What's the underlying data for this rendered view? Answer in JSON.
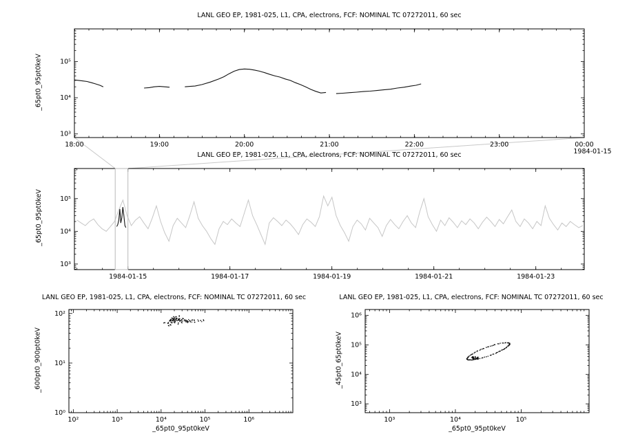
{
  "page": {
    "background": "#ffffff",
    "series_black": "#111111",
    "series_gray": "#c6c6c6"
  },
  "chart_data": {
    "connector_color": "#c8c8c8",
    "panels": [
      {
        "id": "top-timeseries",
        "type": "line",
        "title": "LANL GEO EP, 1981-025, L1, CPA, electrons, FCF: NOMINAL TC 07272011, 60 sec",
        "ylabel": "_65pt0_95pt0keV",
        "date_label": "1984-01-15",
        "x": {
          "log": false,
          "min": 18,
          "max": 24,
          "minor": 0.1667
        },
        "y": {
          "log": true,
          "min": 2.9,
          "max": 5.9
        },
        "x_ticks": [
          {
            "v": 18,
            "label": "18:00"
          },
          {
            "v": 19,
            "label": "19:00"
          },
          {
            "v": 20,
            "label": "20:00"
          },
          {
            "v": 21,
            "label": "21:00"
          },
          {
            "v": 22,
            "label": "22:00"
          },
          {
            "v": 23,
            "label": "23:00"
          },
          {
            "v": 24,
            "label": "00:00"
          }
        ],
        "y_ticks": [
          {
            "v": 1000.0,
            "label": "10³"
          },
          {
            "v": 10000.0,
            "label": "10⁴"
          },
          {
            "v": 100000.0,
            "label": "10⁵"
          }
        ],
        "series": [
          {
            "color": "#111111",
            "width": 1.1,
            "segments": [
              [
                [
                  18.0,
                  31000.0
                ],
                [
                  18.05,
                  30000.0
                ],
                [
                  18.1,
                  29000.0
                ],
                [
                  18.15,
                  28000.0
                ],
                [
                  18.2,
                  26000.0
                ],
                [
                  18.25,
                  24000.0
                ],
                [
                  18.3,
                  22000.0
                ],
                [
                  18.34,
                  20000.0
                ]
              ],
              [
                [
                  18.82,
                  18500.0
                ],
                [
                  18.88,
                  19000.0
                ],
                [
                  18.94,
                  20000.0
                ],
                [
                  19.0,
                  20500.0
                ],
                [
                  19.06,
                  20000.0
                ],
                [
                  19.12,
                  19500.0
                ]
              ],
              [
                [
                  19.3,
                  20000.0
                ],
                [
                  19.36,
                  20500.0
                ],
                [
                  19.42,
                  21000.0
                ],
                [
                  19.5,
                  23000.0
                ],
                [
                  19.6,
                  27000.0
                ],
                [
                  19.7,
                  33000.0
                ],
                [
                  19.76,
                  38000.0
                ],
                [
                  19.82,
                  46000.0
                ],
                [
                  19.88,
                  54000.0
                ],
                [
                  19.94,
                  60000.0
                ],
                [
                  20.0,
                  62000.0
                ],
                [
                  20.06,
                  61000.0
                ],
                [
                  20.12,
                  58000.0
                ],
                [
                  20.18,
                  54000.0
                ],
                [
                  20.24,
                  49000.0
                ],
                [
                  20.3,
                  44000.0
                ],
                [
                  20.36,
                  40000.0
                ],
                [
                  20.42,
                  37000.0
                ],
                [
                  20.48,
                  33000.0
                ],
                [
                  20.54,
                  30000.0
                ],
                [
                  20.6,
                  26000.0
                ],
                [
                  20.66,
                  23000.0
                ],
                [
                  20.72,
                  20000.0
                ],
                [
                  20.78,
                  17000.0
                ],
                [
                  20.84,
                  15000.0
                ],
                [
                  20.9,
                  13500.0
                ],
                [
                  20.96,
                  14000.0
                ]
              ],
              [
                [
                  21.08,
                  13000.0
                ],
                [
                  21.16,
                  13300.0
                ],
                [
                  21.24,
                  13800.0
                ],
                [
                  21.32,
                  14200.0
                ],
                [
                  21.4,
                  14800.0
                ],
                [
                  21.48,
                  15200.0
                ],
                [
                  21.56,
                  15800.0
                ],
                [
                  21.64,
                  16500.0
                ],
                [
                  21.72,
                  17200.0
                ],
                [
                  21.8,
                  18500.0
                ],
                [
                  21.88,
                  19500.0
                ],
                [
                  21.96,
                  21000.0
                ],
                [
                  22.02,
                  22000.0
                ],
                [
                  22.08,
                  24000.0
                ]
              ]
            ]
          }
        ]
      },
      {
        "id": "overview-timeseries",
        "type": "line",
        "title": "LANL GEO EP, 1981-025, L1, CPA, electrons, FCF: NOMINAL TC 07272011, 60 sec",
        "ylabel": "_65pt0_95pt0keV",
        "x": {
          "log": false,
          "min": 13.95,
          "max": 23.95,
          "minor": 0.5
        },
        "y": {
          "log": true,
          "min": 2.83,
          "max": 5.92
        },
        "x_ticks": [
          {
            "v": 15,
            "label": "1984-01-15"
          },
          {
            "v": 17,
            "label": "1984-01-17"
          },
          {
            "v": 19,
            "label": "1984-01-19"
          },
          {
            "v": 21,
            "label": "1984-01-21"
          },
          {
            "v": 23,
            "label": "1984-01-23"
          }
        ],
        "y_ticks": [
          {
            "v": 1000.0,
            "label": "10³"
          },
          {
            "v": 10000.0,
            "label": "10⁴"
          },
          {
            "v": 100000.0,
            "label": "10⁵"
          }
        ],
        "zoom_rect": {
          "x0": 14.75,
          "x1": 15.0,
          "color": "#b8b8b8"
        },
        "series": [
          {
            "color": "#c6c6c6",
            "width": 1,
            "x_start": 14.0,
            "x_step": 0.082,
            "values": [
              22000.0,
              18000.0,
              15000.0,
              20000.0,
              24000.0,
              16000.0,
              12000.0,
              10000.0,
              14000.0,
              20000.0,
              45000.0,
              90000.0,
              30000.0,
              15000.0,
              22000.0,
              28000.0,
              18000.0,
              12000.0,
              25000.0,
              60000.0,
              20000.0,
              9000.0,
              5000.0,
              15000.0,
              25000.0,
              18000.0,
              13000.0,
              30000.0,
              80000.0,
              25000.0,
              15000.0,
              10000.0,
              6000.0,
              4000.0,
              12000.0,
              20000.0,
              16000.0,
              24000.0,
              18000.0,
              14000.0,
              35000.0,
              90000.0,
              30000.0,
              16000.0,
              8000.0,
              4000.0,
              18000.0,
              26000.0,
              20000.0,
              15000.0,
              22000.0,
              17000.0,
              12000.0,
              8000.0,
              16000.0,
              24000.0,
              19000.0,
              14000.0,
              28000.0,
              120000.0,
              60000.0,
              110000.0,
              30000.0,
              15000.0,
              9000.0,
              5000.0,
              14000.0,
              22000.0,
              17000.0,
              11000.0,
              25000.0,
              18000.0,
              13000.0,
              7000.0,
              15000.0,
              23000.0,
              16000.0,
              12000.0,
              20000.0,
              30000.0,
              18000.0,
              13000.0,
              40000.0,
              100000.0,
              28000.0,
              16000.0,
              10000.0,
              22000.0,
              15000.0,
              26000.0,
              19000.0,
              13000.0,
              21000.0,
              16000.0,
              24000.0,
              18000.0,
              12000.0,
              19000.0,
              27000.0,
              20000.0,
              14000.0,
              23000.0,
              17000.0,
              28000.0,
              45000.0,
              20000.0,
              14000.0,
              24000.0,
              18000.0,
              12000.0,
              20000.0,
              15000.0,
              60000.0,
              25000.0,
              16000.0,
              11000.0,
              18000.0,
              14000.0,
              20000.0,
              16000.0,
              13000.0,
              15000.0
            ]
          },
          {
            "color": "#111111",
            "width": 1.1,
            "x_start": 14.78,
            "x_step": 0.02,
            "values": [
              14000.0,
              16000.0,
              22000.0,
              48000.0,
              18000.0,
              26000.0,
              55000.0,
              30000.0,
              15000.0,
              13000.0
            ]
          }
        ]
      },
      {
        "id": "scatter-left",
        "type": "scatter",
        "title": "LANL GEO EP, 1981-025, L1, CPA, electrons, FCF: NOMINAL TC 07272011, 60 sec",
        "xlabel": "_65pt0_95pt0keV",
        "ylabel": "_600pt0_900pt0keV",
        "x": {
          "log": true,
          "min": 1.9,
          "max": 7.0
        },
        "y": {
          "log": true,
          "min": 0,
          "max": 2.08
        },
        "x_ticks": [
          {
            "v": 100.0,
            "label": "10²"
          },
          {
            "v": 1000.0,
            "label": "10³"
          },
          {
            "v": 10000.0,
            "label": "10⁴"
          },
          {
            "v": 100000.0,
            "label": "10⁵"
          },
          {
            "v": 1000000.0,
            "label": "10⁶"
          }
        ],
        "y_ticks": [
          {
            "v": 1,
            "label": "10⁰"
          },
          {
            "v": 10,
            "label": "10¹"
          },
          {
            "v": 100,
            "label": "10²"
          }
        ],
        "points": [
          [
            14000,
            62
          ],
          [
            15000,
            67
          ],
          [
            15500,
            71
          ],
          [
            16000,
            74
          ],
          [
            16500,
            69
          ],
          [
            17000,
            76
          ],
          [
            17500,
            72
          ],
          [
            18000,
            78
          ],
          [
            18500,
            74
          ],
          [
            19000,
            80
          ],
          [
            19500,
            76
          ],
          [
            20000,
            72
          ],
          [
            20500,
            79
          ],
          [
            21000,
            75
          ],
          [
            21500,
            70
          ],
          [
            22000,
            77
          ],
          [
            22500,
            73
          ],
          [
            23000,
            80
          ],
          [
            24000,
            76
          ],
          [
            25000,
            72
          ],
          [
            26000,
            78
          ],
          [
            27000,
            74
          ],
          [
            28000,
            70
          ],
          [
            29000,
            76
          ],
          [
            30000,
            72
          ],
          [
            32000,
            78
          ],
          [
            34000,
            74
          ],
          [
            36000,
            70
          ],
          [
            38000,
            75
          ],
          [
            40000,
            72
          ],
          [
            42000,
            68
          ],
          [
            45000,
            73
          ],
          [
            48000,
            70
          ],
          [
            52000,
            74
          ],
          [
            56000,
            71
          ],
          [
            60000,
            68
          ],
          [
            16000,
            60
          ],
          [
            18000,
            64
          ],
          [
            20000,
            66
          ],
          [
            24000,
            63
          ],
          [
            30000,
            65
          ],
          [
            40000,
            66
          ],
          [
            15000,
            58
          ],
          [
            22000,
            85
          ],
          [
            26000,
            88
          ],
          [
            19000,
            84
          ],
          [
            70000,
            72
          ],
          [
            80000,
            70
          ],
          [
            95000,
            72
          ],
          [
            12000,
            65
          ]
        ]
      },
      {
        "id": "scatter-right",
        "type": "scatter",
        "title": "LANL GEO EP, 1981-025, L1, CPA, electrons, FCF: NOMINAL TC 07272011, 60 sec",
        "xlabel": "_65pt0_95pt0keV",
        "ylabel": "_45pt0_65pt0keV",
        "x": {
          "log": true,
          "min": 2.63,
          "max": 6.03
        },
        "y": {
          "log": true,
          "min": 2.7,
          "max": 6.2
        },
        "x_ticks": [
          {
            "v": 1000.0,
            "label": "10³"
          },
          {
            "v": 10000.0,
            "label": "10⁴"
          },
          {
            "v": 100000.0,
            "label": "10⁵"
          }
        ],
        "y_ticks": [
          {
            "v": 1000.0,
            "label": "10³"
          },
          {
            "v": 10000.0,
            "label": "10⁴"
          },
          {
            "v": 100000.0,
            "label": "10⁵"
          },
          {
            "v": 1000000.0,
            "label": "10⁶"
          }
        ],
        "loop": {
          "cx_log": 4.5,
          "cy_log": 4.78,
          "a": 0.42,
          "b": 0.12,
          "rot_deg": 42,
          "n": 120
        },
        "knot": {
          "cx_log": 4.3,
          "cy_log": 4.56,
          "spread": 0.05,
          "n": 26
        }
      }
    ]
  }
}
